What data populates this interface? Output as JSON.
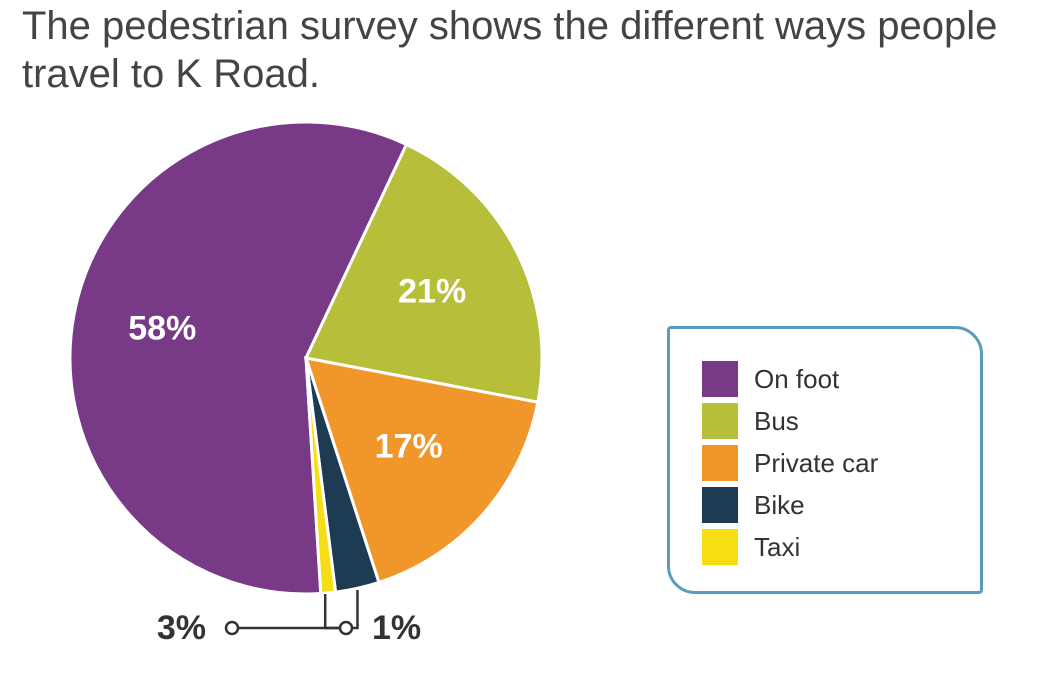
{
  "title": "The pedestrian survey shows the different ways people travel to K Road.",
  "chart_data": {
    "type": "pie",
    "categories": [
      "On foot",
      "Bus",
      "Private car",
      "Bike",
      "Taxi"
    ],
    "values": [
      58,
      21,
      17,
      3,
      1
    ],
    "labels": [
      "58%",
      "21%",
      "17%",
      "3%",
      "1%"
    ],
    "colors": [
      "#783a86",
      "#b7be3a",
      "#f0962a",
      "#1d3b52",
      "#f6dd14"
    ],
    "legend": [
      "On foot",
      "Bus",
      "Private car",
      "Bike",
      "Taxi"
    ],
    "legend_placement": "right"
  }
}
